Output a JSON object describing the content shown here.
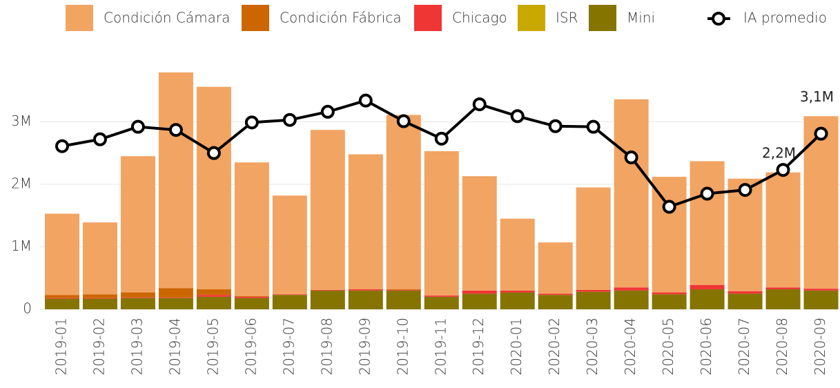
{
  "chart_data": {
    "type": "stacked_bar_line",
    "categories": [
      "2019-01",
      "2019-02",
      "2019-03",
      "2019-04",
      "2019-05",
      "2019-06",
      "2019-07",
      "2019-08",
      "2019-09",
      "2019-10",
      "2019-11",
      "2019-12",
      "2020-01",
      "2020-02",
      "2020-03",
      "2020-04",
      "2020-05",
      "2020-06",
      "2020-07",
      "2020-08",
      "2020-09"
    ],
    "series": [
      {
        "name": "Condición Cámara",
        "color": "#f2a463",
        "values": [
          1300000,
          1150000,
          2180000,
          3450000,
          3240000,
          2140000,
          1580000,
          2560000,
          2160000,
          2790000,
          2310000,
          1830000,
          1150000,
          820000,
          1640000,
          3010000,
          1850000,
          1980000,
          1800000,
          1840000,
          2760000
        ]
      },
      {
        "name": "Condición Fábrica",
        "color": "#cc6600",
        "values": [
          50000,
          60000,
          80000,
          150000,
          90000,
          10000,
          0,
          0,
          0,
          10000,
          0,
          0,
          0,
          0,
          0,
          0,
          0,
          0,
          0,
          0,
          0
        ]
      },
      {
        "name": "Chicago",
        "color": "#f03535",
        "values": [
          10000,
          10000,
          10000,
          10000,
          30000,
          20000,
          10000,
          10000,
          20000,
          10000,
          20000,
          50000,
          30000,
          20000,
          30000,
          50000,
          30000,
          70000,
          40000,
          30000,
          30000
        ]
      },
      {
        "name": "ISR",
        "color": "#c9a800",
        "values": [
          0,
          0,
          0,
          0,
          0,
          0,
          0,
          0,
          0,
          0,
          0,
          0,
          0,
          0,
          0,
          0,
          0,
          0,
          0,
          0,
          0
        ]
      },
      {
        "name": "Mini",
        "color": "#857400",
        "values": [
          170000,
          170000,
          180000,
          180000,
          200000,
          180000,
          230000,
          300000,
          300000,
          300000,
          200000,
          250000,
          270000,
          230000,
          280000,
          300000,
          240000,
          320000,
          250000,
          320000,
          300000
        ]
      }
    ],
    "line": {
      "name": "IA promedio",
      "color": "#000000",
      "values": [
        2610000,
        2720000,
        2920000,
        2870000,
        2500000,
        2990000,
        3030000,
        3160000,
        3340000,
        3010000,
        2730000,
        3280000,
        3090000,
        2930000,
        2920000,
        2430000,
        1640000,
        1850000,
        1910000,
        2230000,
        2810000
      ]
    },
    "annotations": [
      {
        "x": "2020-08",
        "value": 2200000,
        "label": "2,2M"
      },
      {
        "x": "2020-09",
        "value": 3100000,
        "label": "3,1M"
      }
    ],
    "ylim": [
      0,
      3800000
    ],
    "yticks": [
      0,
      {
        "value": 1000000,
        "label": "1M"
      },
      {
        "value": 2000000,
        "label": "2M"
      },
      {
        "value": 3000000,
        "label": "3M"
      }
    ],
    "grid": true,
    "legend": "top"
  }
}
